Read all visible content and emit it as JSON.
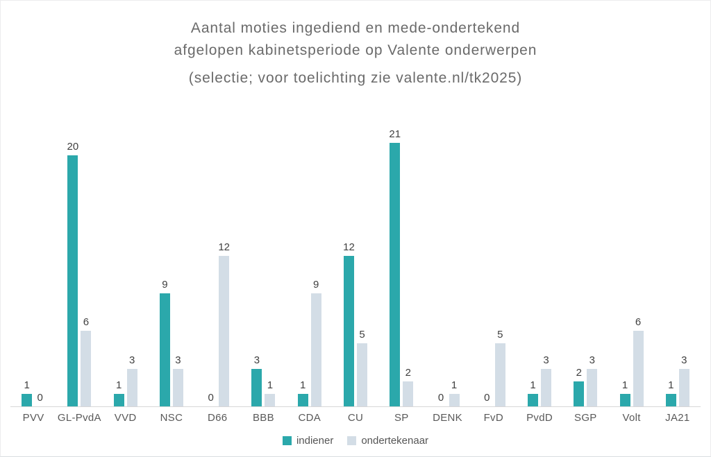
{
  "title": {
    "line1": "Aantal moties ingediend en mede-ondertekend",
    "line2": "afgelopen kabinetsperiode op Valente onderwerpen",
    "subtitle": "(selectie; voor toelichting zie valente.nl/tk2025)"
  },
  "legend": [
    {
      "label": "indiener",
      "color": "#2ba8ab"
    },
    {
      "label": "ondertekenaar",
      "color": "#d3dde6"
    }
  ],
  "colors": {
    "bar_indiener": "#2ba8ab",
    "bar_ondertekenaar": "#d3dde6",
    "axis_line": "#d7d7d7",
    "title_text": "#6a6a6a",
    "label_text": "#404040",
    "category_text": "#595959"
  },
  "chart_data": {
    "type": "bar",
    "title": "Aantal moties ingediend en mede-ondertekend afgelopen kabinetsperiode op Valente onderwerpen",
    "subtitle": "(selectie; voor toelichting zie valente.nl/tk2025)",
    "categories": [
      "PVV",
      "GL-PvdA",
      "VVD",
      "NSC",
      "D66",
      "BBB",
      "CDA",
      "CU",
      "SP",
      "DENK",
      "FvD",
      "PvdD",
      "SGP",
      "Volt",
      "JA21"
    ],
    "series": [
      {
        "name": "indiener",
        "color": "#2ba8ab",
        "values": [
          1,
          20,
          1,
          9,
          0,
          3,
          1,
          12,
          21,
          0,
          0,
          1,
          2,
          1,
          1
        ]
      },
      {
        "name": "ondertekenaar",
        "color": "#d3dde6",
        "values": [
          0,
          6,
          3,
          3,
          12,
          1,
          9,
          5,
          2,
          1,
          5,
          3,
          3,
          6,
          3
        ]
      }
    ],
    "xlabel": "",
    "ylabel": "",
    "ylim": [
      0,
      21
    ],
    "grid": false,
    "y_axis_shown": false,
    "data_labels": true,
    "legend_position": "bottom"
  }
}
